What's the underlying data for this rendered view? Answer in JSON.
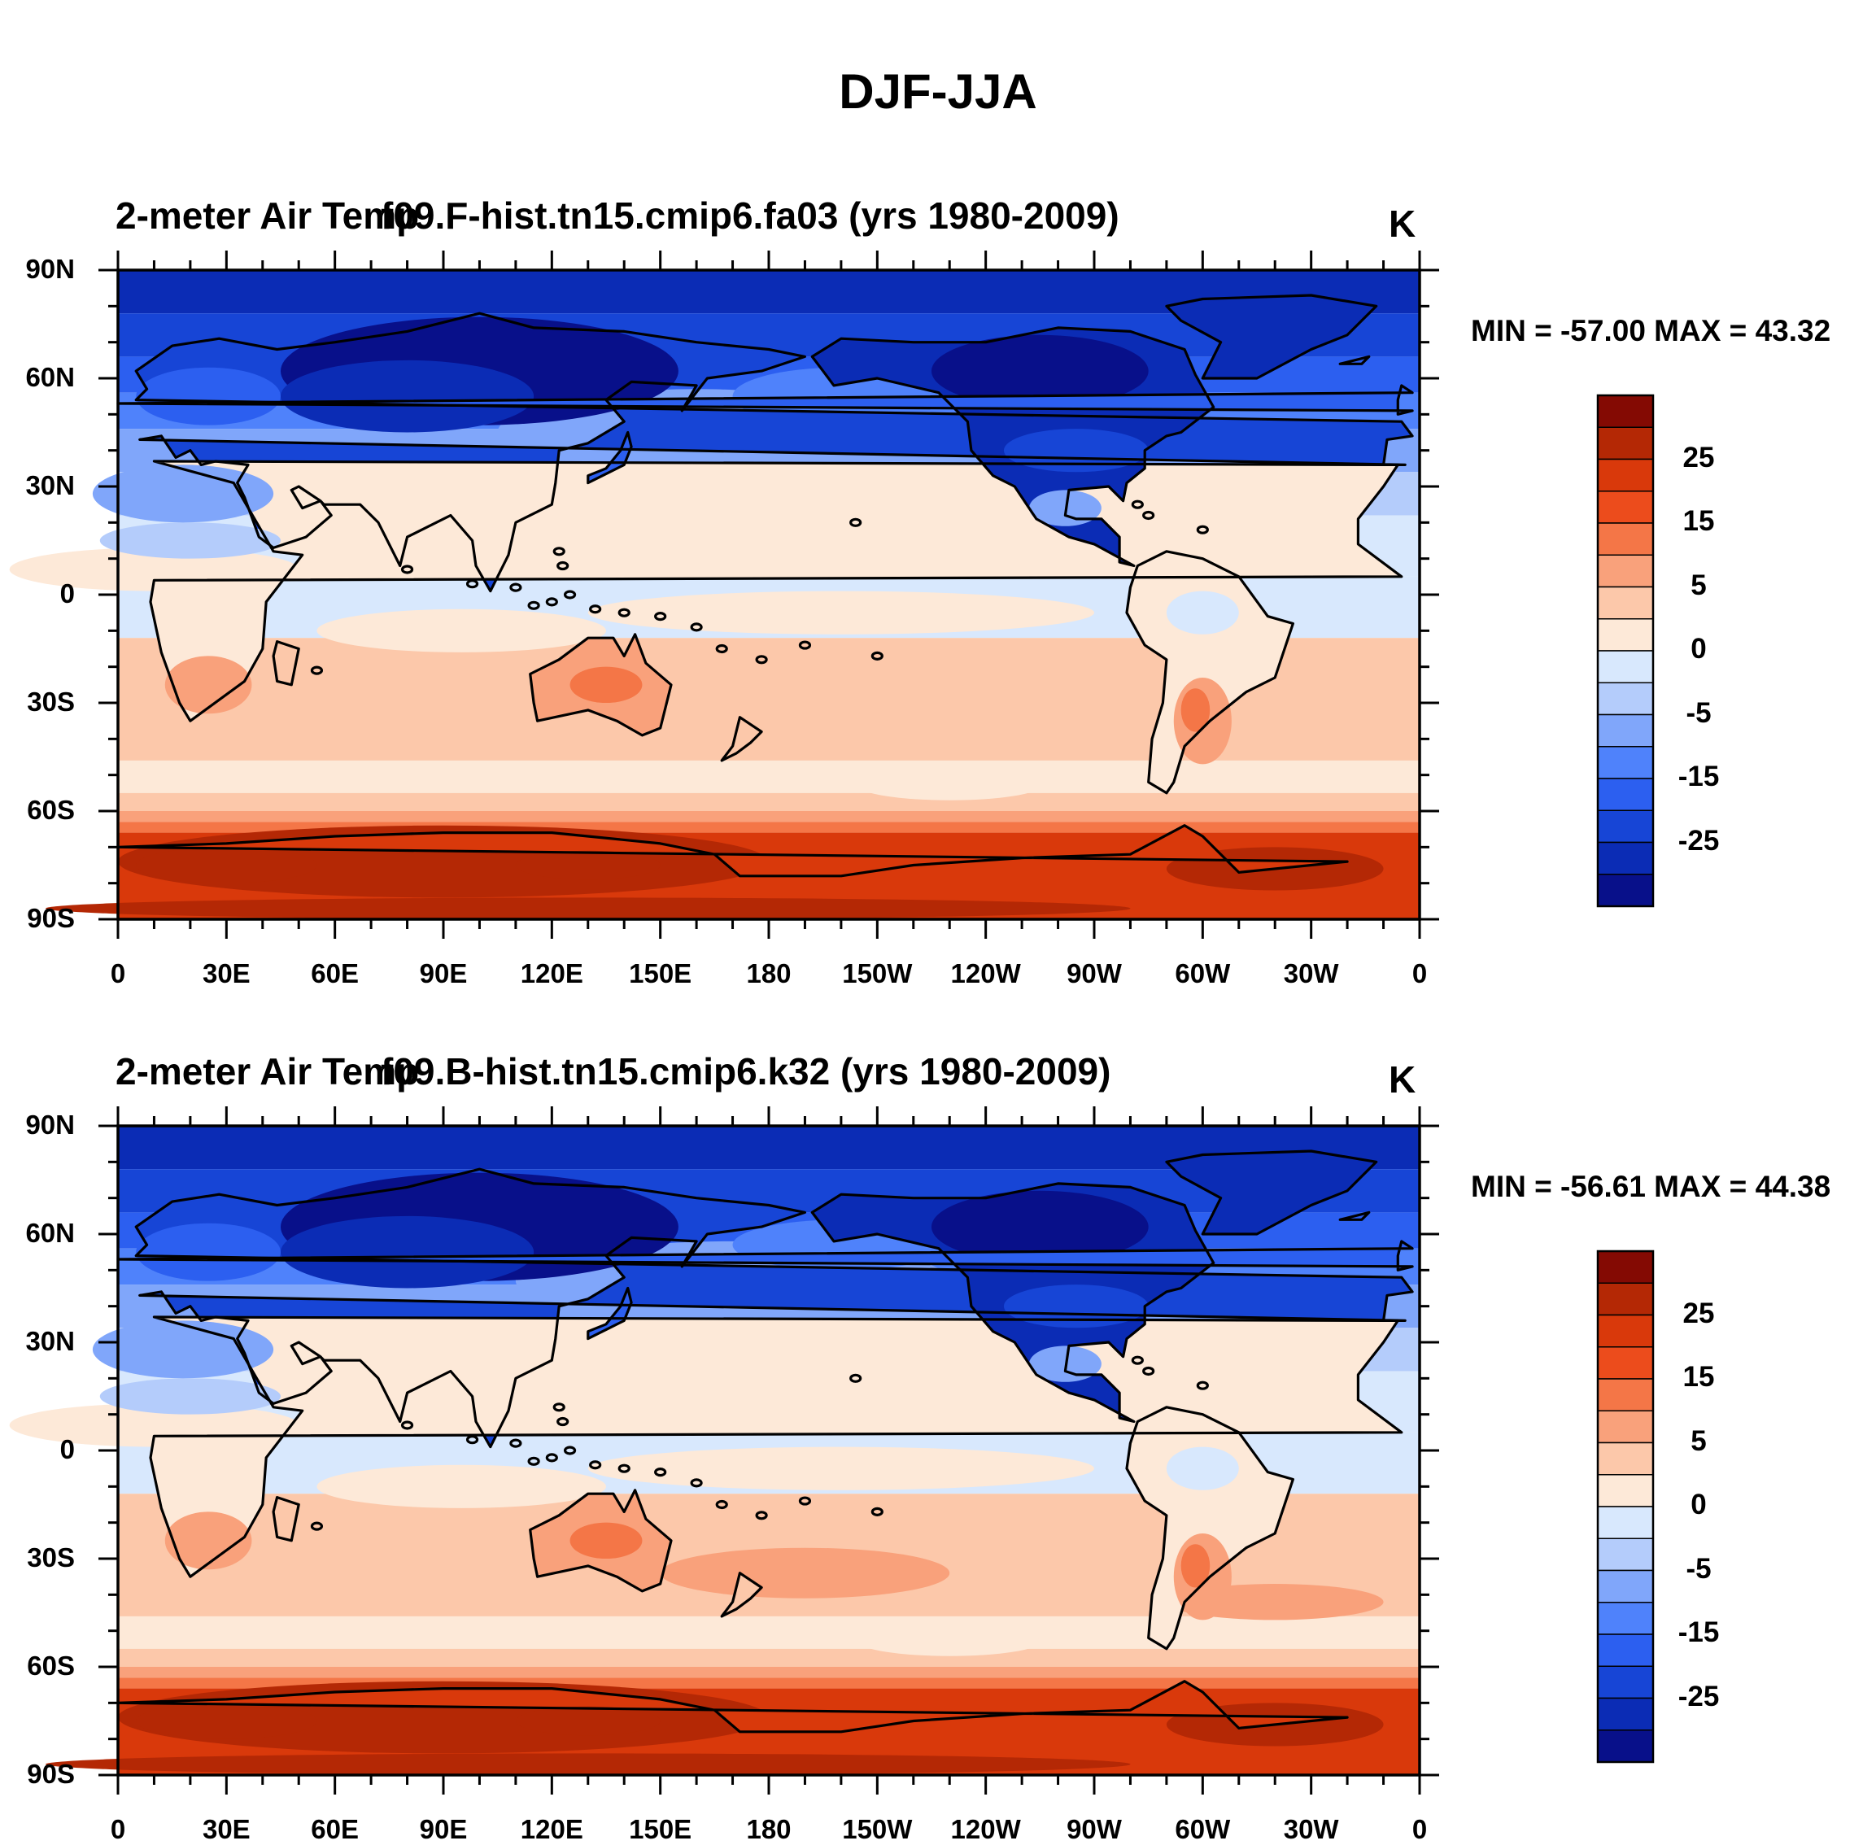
{
  "title": "DJF-JJA",
  "colors": {
    "scale": [
      "#08108a",
      "#0b2cb5",
      "#1745d6",
      "#2c5ff0",
      "#4f82fb",
      "#80a6fa",
      "#b4ccfb",
      "#d8e8fd",
      "#fde9d8",
      "#fcc8aa",
      "#f9a17b",
      "#f47647",
      "#ec4c1c",
      "#d9390b",
      "#b42805",
      "#840a03"
    ],
    "coast": "#000000"
  },
  "panels": [
    {
      "variable": "2-meter Air Temp",
      "case": "f09.F-hist.tn15.cmip6.fa03 (yrs 1980-2009)",
      "units": "K",
      "minmax": "MIN = -57.00 MAX =  43.32"
    },
    {
      "variable": "2-meter Air Temp",
      "case": "f09.B-hist.tn15.cmip6.k32 (yrs 1980-2009)",
      "units": "K",
      "minmax": "MIN = -56.61 MAX =  44.38"
    }
  ],
  "lat_labels": [
    "90N",
    "60N",
    "30N",
    "0",
    "30S",
    "60S",
    "90S"
  ],
  "lon_labels": [
    "0",
    "30E",
    "60E",
    "90E",
    "120E",
    "150E",
    "180",
    "150W",
    "120W",
    "90W",
    "60W",
    "30W",
    "0"
  ],
  "colorbar_labels": [
    "25",
    "15",
    "5",
    "0",
    "-5",
    "-15",
    "-25"
  ]
}
